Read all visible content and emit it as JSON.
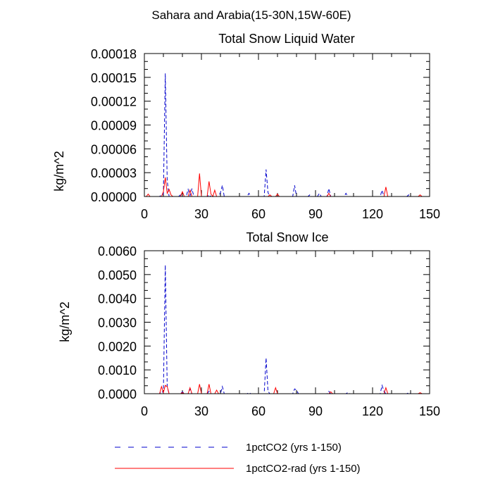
{
  "figure_title": "Sahara and Arabia(15-30N,15W-60E)",
  "chart_data": [
    {
      "type": "line",
      "title": "Total Snow Liquid Water",
      "xlabel": "",
      "ylabel": "kg/m^2",
      "xlim": [
        0,
        150
      ],
      "ylim": [
        0,
        0.00018
      ],
      "xticks": [
        0,
        30,
        60,
        90,
        120,
        150
      ],
      "xtick_labels": [
        "0",
        "30",
        "60",
        "90",
        "120",
        "150"
      ],
      "yticks": [
        0,
        3e-05,
        6e-05,
        9e-05,
        0.00012,
        0.00015,
        0.00018
      ],
      "ytick_labels": [
        "0.00000",
        "0.00003",
        "0.00006",
        "0.00009",
        "0.00012",
        "0.00015",
        "0.00018"
      ],
      "grid": false,
      "series": [
        {
          "name": "1pctCO2 (yrs 1-150)",
          "color": "#0000cc",
          "dash": "dashed",
          "points": [
            [
              1,
              0
            ],
            [
              8,
              0
            ],
            [
              9,
              2e-06
            ],
            [
              10,
              3e-06
            ],
            [
              11,
              0.000155
            ],
            [
              12,
              2e-05
            ],
            [
              13,
              0
            ],
            [
              18,
              0
            ],
            [
              19,
              2e-06
            ],
            [
              20,
              0
            ],
            [
              22,
              0
            ],
            [
              23,
              9e-06
            ],
            [
              24,
              1e-06
            ],
            [
              25,
              1e-05
            ],
            [
              26,
              0
            ],
            [
              33,
              0
            ],
            [
              34,
              2e-06
            ],
            [
              35,
              0
            ],
            [
              39,
              0
            ],
            [
              40,
              5e-06
            ],
            [
              41,
              1.4e-05
            ],
            [
              42,
              0
            ],
            [
              54,
              0
            ],
            [
              55,
              4e-06
            ],
            [
              56,
              0
            ],
            [
              63,
              0
            ],
            [
              64,
              3.4e-05
            ],
            [
              65,
              5e-06
            ],
            [
              66,
              0
            ],
            [
              78,
              0
            ],
            [
              79,
              1.4e-05
            ],
            [
              80,
              0
            ],
            [
              86,
              0
            ],
            [
              87,
              2e-06
            ],
            [
              88,
              0
            ],
            [
              91,
              0
            ],
            [
              92,
              4e-06
            ],
            [
              93,
              0
            ],
            [
              96,
              0
            ],
            [
              97,
              1e-05
            ],
            [
              98,
              0
            ],
            [
              105,
              0
            ],
            [
              106,
              4e-06
            ],
            [
              107,
              0
            ],
            [
              118,
              0
            ],
            [
              124,
              0
            ],
            [
              125,
              8e-06
            ],
            [
              126,
              0
            ],
            [
              138,
              0
            ],
            [
              139,
              2e-06
            ],
            [
              140,
              0
            ],
            [
              150,
              0
            ]
          ]
        },
        {
          "name": "1pctCO2-rad (yrs 1-150)",
          "color": "#ff0000",
          "dash": "solid",
          "points": [
            [
              1,
              0
            ],
            [
              2,
              3e-06
            ],
            [
              3,
              0
            ],
            [
              9,
              0
            ],
            [
              10,
              6e-06
            ],
            [
              11,
              2.4e-05
            ],
            [
              12,
              4e-06
            ],
            [
              13,
              9e-06
            ],
            [
              14,
              2e-06
            ],
            [
              15,
              0
            ],
            [
              19,
              0
            ],
            [
              20,
              6e-06
            ],
            [
              21,
              0
            ],
            [
              23,
              0
            ],
            [
              24,
              8e-06
            ],
            [
              25,
              0
            ],
            [
              28,
              0
            ],
            [
              29,
              2.9e-05
            ],
            [
              30,
              0
            ],
            [
              33,
              0
            ],
            [
              34,
              1.9e-05
            ],
            [
              35,
              3e-06
            ],
            [
              36,
              0
            ],
            [
              37,
              8e-06
            ],
            [
              38,
              0
            ],
            [
              65,
              0
            ],
            [
              66,
              2e-06
            ],
            [
              67,
              0
            ],
            [
              69,
              0
            ],
            [
              70,
              3e-06
            ],
            [
              71,
              0
            ],
            [
              96,
              0
            ],
            [
              97,
              4e-06
            ],
            [
              98,
              0
            ],
            [
              126,
              0
            ],
            [
              127,
              1.2e-05
            ],
            [
              128,
              0
            ],
            [
              144,
              0
            ],
            [
              145,
              2e-06
            ],
            [
              146,
              0
            ],
            [
              150,
              0
            ]
          ]
        }
      ]
    },
    {
      "type": "line",
      "title": "Total Snow Ice",
      "xlabel": "",
      "ylabel": "kg/m^2",
      "xlim": [
        0,
        150
      ],
      "ylim": [
        0,
        0.006
      ],
      "xticks": [
        0,
        30,
        60,
        90,
        120,
        150
      ],
      "xtick_labels": [
        "0",
        "30",
        "60",
        "90",
        "120",
        "150"
      ],
      "yticks": [
        0,
        0.001,
        0.002,
        0.003,
        0.004,
        0.005,
        0.006
      ],
      "ytick_labels": [
        "0.0000",
        "0.0010",
        "0.0020",
        "0.0030",
        "0.0040",
        "0.0050",
        "0.0060"
      ],
      "grid": false,
      "series": [
        {
          "name": "1pctCO2 (yrs 1-150)",
          "color": "#0000cc",
          "dash": "dashed",
          "points": [
            [
              1,
              0
            ],
            [
              8,
              0
            ],
            [
              9,
              0.0001
            ],
            [
              10,
              5e-05
            ],
            [
              11,
              0.0054
            ],
            [
              12,
              0.0003
            ],
            [
              13,
              0
            ],
            [
              19,
              0
            ],
            [
              20,
              8e-05
            ],
            [
              21,
              0
            ],
            [
              23,
              0
            ],
            [
              24,
              0.0002
            ],
            [
              25,
              0
            ],
            [
              33,
              0
            ],
            [
              34,
              0.0001
            ],
            [
              35,
              0
            ],
            [
              40,
              0
            ],
            [
              41,
              0.0003
            ],
            [
              42,
              0
            ],
            [
              54,
              0
            ],
            [
              55,
              4e-05
            ],
            [
              56,
              0
            ],
            [
              63,
              0
            ],
            [
              64,
              0.0015
            ],
            [
              65,
              0.0001
            ],
            [
              66,
              0
            ],
            [
              78,
              0
            ],
            [
              79,
              0.0002
            ],
            [
              80,
              0.00015
            ],
            [
              81,
              0
            ],
            [
              96,
              0
            ],
            [
              97,
              0.0001
            ],
            [
              98,
              0
            ],
            [
              106,
              0
            ],
            [
              107,
              5e-05
            ],
            [
              108,
              0
            ],
            [
              124,
              0
            ],
            [
              125,
              0.00035
            ],
            [
              126,
              0.0001
            ],
            [
              127,
              0
            ],
            [
              138,
              0
            ],
            [
              139,
              4e-05
            ],
            [
              140,
              0
            ],
            [
              150,
              0
            ]
          ]
        },
        {
          "name": "1pctCO2-rad (yrs 1-150)",
          "color": "#ff0000",
          "dash": "solid",
          "points": [
            [
              1,
              0
            ],
            [
              8,
              0
            ],
            [
              9,
              0.0003
            ],
            [
              10,
              5e-05
            ],
            [
              11,
              0.00035
            ],
            [
              12,
              0.0003
            ],
            [
              13,
              0
            ],
            [
              19,
              0
            ],
            [
              20,
              5e-05
            ],
            [
              21,
              0
            ],
            [
              23,
              0
            ],
            [
              24,
              0.00025
            ],
            [
              25,
              0
            ],
            [
              28,
              0
            ],
            [
              29,
              0.0004
            ],
            [
              30,
              0
            ],
            [
              33,
              0
            ],
            [
              34,
              0.0004
            ],
            [
              35,
              0
            ],
            [
              37,
              0
            ],
            [
              38,
              0.00015
            ],
            [
              39,
              0
            ],
            [
              68,
              0
            ],
            [
              69,
              0.00025
            ],
            [
              70,
              0
            ],
            [
              97,
              0
            ],
            [
              98,
              8e-05
            ],
            [
              99,
              0
            ],
            [
              126,
              0
            ],
            [
              127,
              0.00025
            ],
            [
              128,
              0
            ],
            [
              144,
              0
            ],
            [
              145,
              4e-05
            ],
            [
              146,
              0
            ],
            [
              150,
              0
            ]
          ]
        }
      ]
    }
  ],
  "legend": {
    "placement": "bottom",
    "entries": [
      {
        "label": "1pctCO2 (yrs 1-150)",
        "color": "#0000cc",
        "dash": "dashed"
      },
      {
        "label": "1pctCO2-rad (yrs 1-150)",
        "color": "#ff0000",
        "dash": "solid"
      }
    ]
  }
}
